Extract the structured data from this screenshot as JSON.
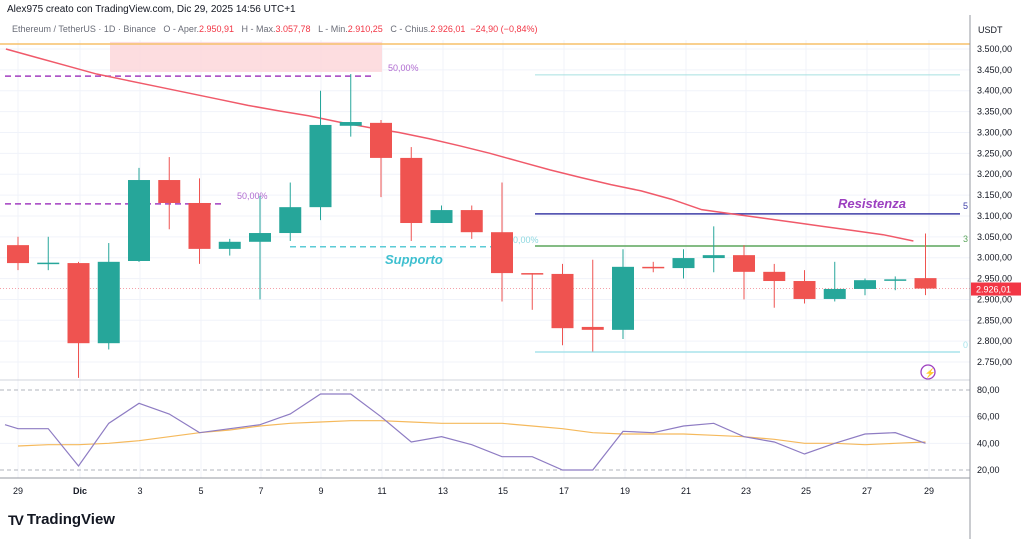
{
  "header": {
    "credit": "Alex975 creato con TradingView.com, Dic 29, 2025 14:56 UTC+1",
    "symbol": "Ethereum / TetherUS · 1D · Binance",
    "open_label": "O - Aper.",
    "open": "2.950,91",
    "high_label": "H - Max.",
    "high": "3.057,78",
    "low_label": "L - Min.",
    "low": "2.910,25",
    "close_label": "C - Chius.",
    "close": "2.926,01",
    "change": "−24,90 (−0,84%)"
  },
  "price_axis": {
    "currency": "USDT",
    "ticks": [
      "3.500,00",
      "3.450,00",
      "3.400,00",
      "3.350,00",
      "3.300,00",
      "3.250,00",
      "3.200,00",
      "3.150,00",
      "3.100,00",
      "3.050,00",
      "3.000,00",
      "2.950,00",
      "2.900,00",
      "2.850,00",
      "2.800,00",
      "2.750,00"
    ],
    "current_price_label": "2.926,01"
  },
  "osc_axis": {
    "ticks": [
      "80,00",
      "60,00",
      "40,00",
      "20,00"
    ]
  },
  "time_axis": {
    "labels": [
      "29",
      "Dic",
      "3",
      "5",
      "7",
      "9",
      "11",
      "13",
      "15",
      "17",
      "19",
      "21",
      "23",
      "25",
      "27",
      "29"
    ]
  },
  "annotations": {
    "support": "Supporto",
    "resistance": "Resistenza",
    "fib1": "50,00%",
    "fib2": "50,00%",
    "fib3": "50,00%",
    "edge1": "5",
    "edge2": "3",
    "edge3": "0"
  },
  "colors": {
    "up": "#26a69a",
    "down": "#ef5350",
    "ma": "#f05a6a",
    "rsi": "#8e7cc3",
    "rsi_ma": "#f5b95c",
    "resistance": "#3f3fa8",
    "support_line": "#5ca65c",
    "cyan": "#5ccbd6",
    "orange_line": "#f7c06a",
    "resist_text": "#9c3fc0"
  },
  "chart_data": {
    "type": "candlestick",
    "dates": [
      "Nov 29",
      "Nov 30",
      "Dic 1",
      "Dic 2",
      "Dic 3",
      "Dic 4",
      "Dic 5",
      "Dic 6",
      "Dic 7",
      "Dic 8",
      "Dic 9",
      "Dic 10",
      "Dic 11",
      "Dic 12",
      "Dic 13",
      "Dic 14",
      "Dic 15",
      "Dic 16",
      "Dic 17",
      "Dic 18",
      "Dic 19",
      "Dic 20",
      "Dic 21",
      "Dic 22",
      "Dic 23",
      "Dic 24",
      "Dic 25",
      "Dic 26",
      "Dic 27",
      "Dic 28",
      "Dic 29"
    ],
    "ohlc": [
      [
        3030,
        3050,
        2970,
        2987
      ],
      [
        2987,
        3050,
        2970,
        2988
      ],
      [
        2987,
        2990,
        2712,
        2795
      ],
      [
        2795,
        3035,
        2780,
        2990
      ],
      [
        2992,
        3215,
        2990,
        3186
      ],
      [
        3186,
        3241,
        3068,
        3131
      ],
      [
        3131,
        3190,
        2985,
        3021
      ],
      [
        3021,
        3045,
        3005,
        3038
      ],
      [
        3038,
        3148,
        2900,
        3059
      ],
      [
        3059,
        3180,
        3040,
        3121
      ],
      [
        3121,
        3400,
        3090,
        3318
      ],
      [
        3316,
        3440,
        3290,
        3325
      ],
      [
        3323,
        3330,
        3145,
        3239
      ],
      [
        3239,
        3265,
        3040,
        3083
      ],
      [
        3083,
        3125,
        3083,
        3114
      ],
      [
        3114,
        3125,
        3045,
        3061
      ],
      [
        3061,
        3180,
        2895,
        2963
      ],
      [
        2963,
        2963,
        2875,
        2962
      ],
      [
        2961,
        2985,
        2790,
        2831
      ],
      [
        2834,
        2995,
        2775,
        2827
      ],
      [
        2827,
        3020,
        2805,
        2978
      ],
      [
        2978,
        2990,
        2965,
        2976
      ],
      [
        2975,
        3020,
        2950,
        2999
      ],
      [
        2999,
        3075,
        2965,
        3006
      ],
      [
        3006,
        3030,
        2900,
        2966
      ],
      [
        2966,
        2985,
        2880,
        2944
      ],
      [
        2944,
        2970,
        2890,
        2901
      ],
      [
        2901,
        2990,
        2895,
        2925
      ],
      [
        2925,
        2950,
        2910,
        2946
      ],
      [
        2947,
        2955,
        2922,
        2948
      ],
      [
        2950.91,
        3057.78,
        2910.25,
        2926.01
      ]
    ],
    "ma": [
      3500,
      3480,
      3460,
      3440,
      3425,
      3410,
      3395,
      3380,
      3365,
      3352,
      3340,
      3325,
      3312,
      3300,
      3285,
      3268,
      3250,
      3230,
      3210,
      3192,
      3175,
      3160,
      3140,
      3115,
      3105,
      3095,
      3085,
      3075,
      3065,
      3055,
      3040
    ],
    "rsi": [
      51,
      51,
      23,
      55,
      70,
      62,
      48,
      51,
      54,
      62,
      77,
      77,
      60,
      41,
      45,
      39,
      30,
      30,
      20,
      20,
      49,
      48,
      53,
      55,
      45,
      41,
      32,
      40,
      47,
      48,
      40
    ],
    "rsi_ma": [
      38,
      39,
      39,
      40,
      42,
      45,
      48,
      50,
      53,
      55,
      56,
      57,
      57,
      56,
      55,
      55,
      55,
      53,
      51,
      48,
      47,
      47,
      47,
      46,
      45,
      43,
      40,
      40,
      39,
      40,
      41
    ],
    "price_range": [
      2700,
      3540
    ],
    "osc_range": [
      12,
      88
    ],
    "levels": {
      "orange": 3512,
      "fib_top": 3435,
      "fib_mid": 3129,
      "fib_support": 3026,
      "cyan_top": 3438,
      "resistance": 3105,
      "green": 3028,
      "cyan_bottom": 2774,
      "zone": [
        3445,
        3517
      ]
    }
  }
}
